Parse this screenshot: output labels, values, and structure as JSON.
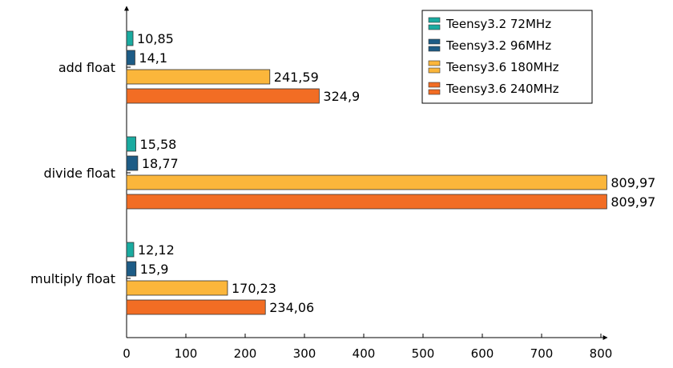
{
  "chart_data": {
    "type": "bar",
    "orientation": "horizontal",
    "categories": [
      "add float",
      "divide float",
      "multiply float"
    ],
    "series": [
      {
        "name": "Teensy3.2 72MHz",
        "color": "#1aaba0",
        "values": [
          10.85,
          15.58,
          12.12
        ],
        "labels": [
          "10,85",
          "15,58",
          "12,12"
        ]
      },
      {
        "name": "Teensy3.2 96MHz",
        "color": "#1d5c86",
        "values": [
          14.1,
          18.77,
          15.9
        ],
        "labels": [
          "14,1",
          "18,77",
          "15,9"
        ]
      },
      {
        "name": "Teensy3.6 180MHz",
        "color": "#fbb63b",
        "values": [
          241.59,
          809.97,
          170.23
        ],
        "labels": [
          "241,59",
          "809,97",
          "170,23"
        ]
      },
      {
        "name": "Teensy3.6 240MHz",
        "color": "#f26d24",
        "values": [
          324.9,
          809.97,
          234.06
        ],
        "labels": [
          "324,9",
          "809,97",
          "234,06"
        ]
      }
    ],
    "xlim": [
      0,
      800
    ],
    "xticks": [
      0,
      100,
      200,
      300,
      400,
      500,
      600,
      700,
      800
    ],
    "grid": false,
    "legend_position": "top-right",
    "title": "",
    "xlabel": "",
    "ylabel": ""
  }
}
